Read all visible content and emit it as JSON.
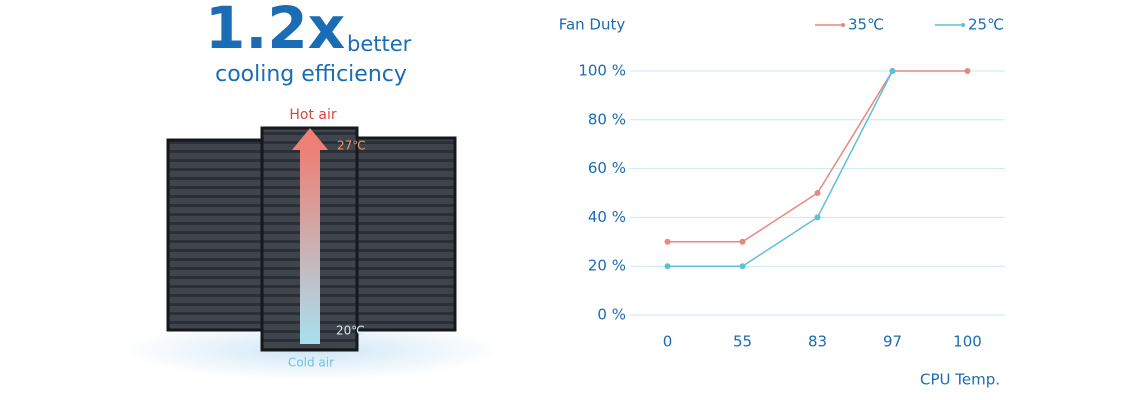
{
  "infographic": {
    "headline": "1.2x",
    "headline_suffix": "better",
    "subheadline": "cooling efficiency",
    "hot_label": "Hot air",
    "hot_temp": "27℃",
    "cold_temp": "20℃",
    "cold_label": "Cold air"
  },
  "chart_data": {
    "type": "line",
    "y_label": "Fan Duty",
    "x_label": "CPU Temp.",
    "categories": [
      "0",
      "55",
      "83",
      "97",
      "100"
    ],
    "series": [
      {
        "name": "35℃",
        "color": "#e8877c",
        "values": [
          30,
          30,
          50,
          100,
          100
        ]
      },
      {
        "name": "25℃",
        "color": "#5cc0da",
        "values": [
          20,
          20,
          40,
          100,
          null
        ]
      }
    ],
    "ylim": [
      0,
      100
    ],
    "yticks": [
      {
        "value": 0,
        "label": "0 %"
      },
      {
        "value": 20,
        "label": "20 %"
      },
      {
        "value": 40,
        "label": "40 %"
      },
      {
        "value": 60,
        "label": "60 %"
      },
      {
        "value": 80,
        "label": "80 %"
      },
      {
        "value": 100,
        "label": "100 %"
      }
    ],
    "grid": true,
    "legend": "top-right"
  }
}
